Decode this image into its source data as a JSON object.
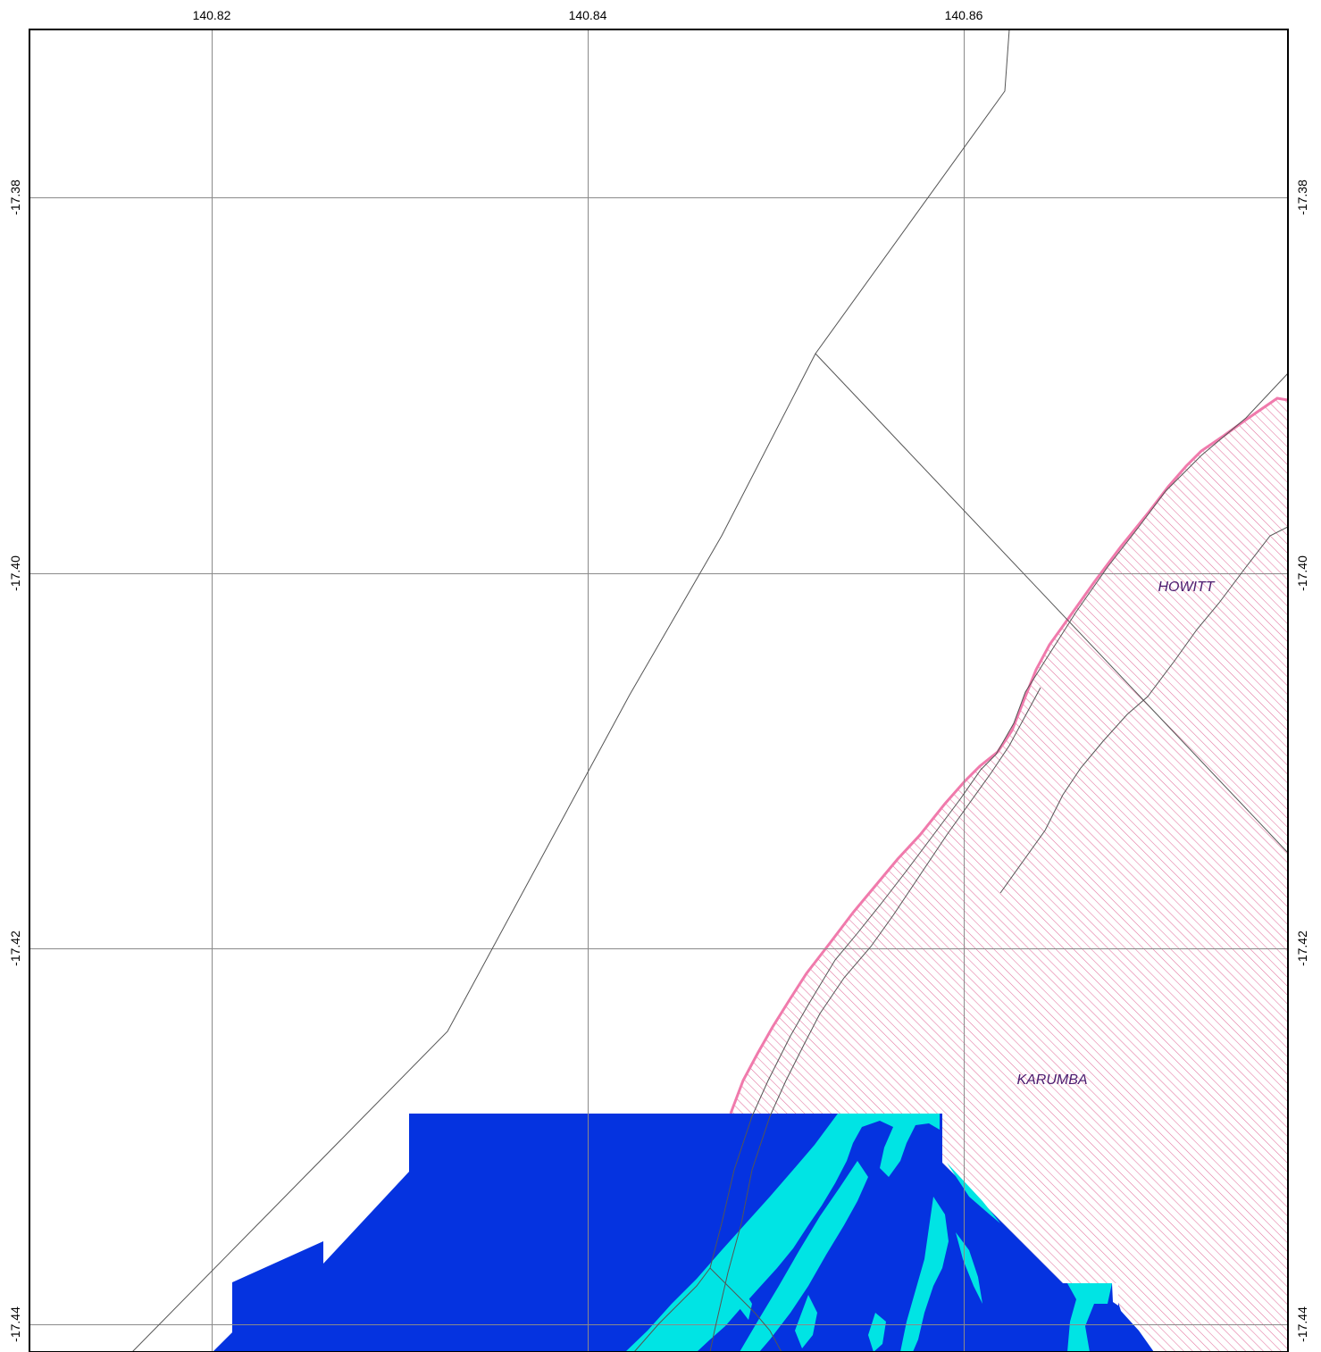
{
  "map": {
    "colors": {
      "frame": "#000000",
      "grid": "#8a8a8a",
      "boundary": "#555555",
      "hatch": "#e2739e",
      "hatch_outline": "#f07aac",
      "deep_water": "#0533e0",
      "shallow_water": "#00e4e4",
      "label": "#4a1a6e"
    },
    "longitude_ticks": [
      {
        "id": "lon-140-82",
        "label": "140.82"
      },
      {
        "id": "lon-140-84",
        "label": "140.84"
      },
      {
        "id": "lon-140-86",
        "label": "140.86"
      }
    ],
    "latitude_ticks": [
      {
        "id": "lat-17-38",
        "label": "-17.38"
      },
      {
        "id": "lat-17-40",
        "label": "-17.40"
      },
      {
        "id": "lat-17-42",
        "label": "-17.42"
      },
      {
        "id": "lat-17-44",
        "label": "-17.44"
      }
    ],
    "places": {
      "howitt": "HOWITT",
      "karumba": "KARUMBA"
    }
  }
}
